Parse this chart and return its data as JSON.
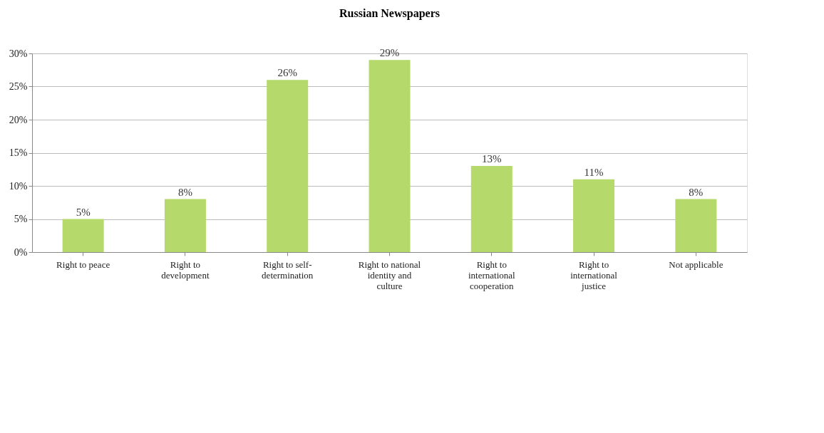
{
  "chart_data": {
    "type": "bar",
    "title": "Russian Newspapers",
    "categories": [
      "Right to peace",
      "Right to development",
      "Right to self-determination",
      "Right to national identity and culture",
      "Right to international cooperation",
      "Right to international justice",
      "Not applicable"
    ],
    "values": [
      5,
      8,
      26,
      29,
      13,
      11,
      8
    ],
    "value_labels": [
      "5%",
      "8%",
      "26%",
      "29%",
      "13%",
      "11%",
      "8%"
    ],
    "color": "#b5d96a",
    "ylim": [
      0,
      30
    ],
    "yticks": [
      {
        "value": 0,
        "label": "0%"
      },
      {
        "value": 5,
        "label": "5%"
      },
      {
        "value": 10,
        "label": "10%"
      },
      {
        "value": 15,
        "label": "15%"
      },
      {
        "value": 20,
        "label": "20%"
      },
      {
        "value": 25,
        "label": "25%"
      },
      {
        "value": 30,
        "label": "30%"
      }
    ],
    "grid": "y"
  }
}
